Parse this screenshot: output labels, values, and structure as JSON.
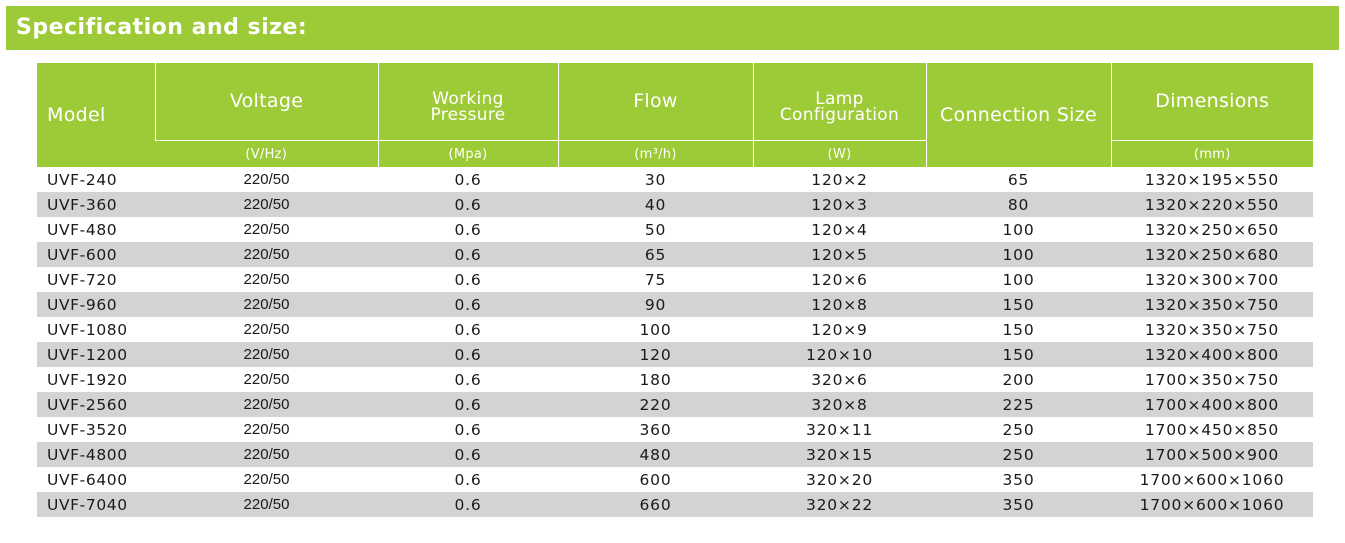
{
  "title": "Specification and size:",
  "headers": {
    "model": "Model",
    "voltage": "Voltage",
    "pressure_line1": "Working",
    "pressure_line2": "Pressure",
    "flow": "Flow",
    "lamp_line1": "Lamp",
    "lamp_line2": "Configuration",
    "connection": "Connection Size",
    "dimensions": "Dimensions"
  },
  "units": {
    "voltage": "(V/Hz)",
    "pressure": "(Mpa)",
    "flow": "(m³/h)",
    "lamp": "(W)",
    "dimensions": "(mm)"
  },
  "rows": [
    {
      "model": "UVF-240",
      "voltage": "220/50",
      "pressure": "0.6",
      "flow": "30",
      "lamp": "120×2",
      "connection": "65",
      "dimensions": "1320×195×550"
    },
    {
      "model": "UVF-360",
      "voltage": "220/50",
      "pressure": "0.6",
      "flow": "40",
      "lamp": "120×3",
      "connection": "80",
      "dimensions": "1320×220×550"
    },
    {
      "model": "UVF-480",
      "voltage": "220/50",
      "pressure": "0.6",
      "flow": "50",
      "lamp": "120×4",
      "connection": "100",
      "dimensions": "1320×250×650"
    },
    {
      "model": "UVF-600",
      "voltage": "220/50",
      "pressure": "0.6",
      "flow": "65",
      "lamp": "120×5",
      "connection": "100",
      "dimensions": "1320×250×680"
    },
    {
      "model": "UVF-720",
      "voltage": "220/50",
      "pressure": "0.6",
      "flow": "75",
      "lamp": "120×6",
      "connection": "100",
      "dimensions": "1320×300×700"
    },
    {
      "model": "UVF-960",
      "voltage": "220/50",
      "pressure": "0.6",
      "flow": "90",
      "lamp": "120×8",
      "connection": "150",
      "dimensions": "1320×350×750"
    },
    {
      "model": "UVF-1080",
      "voltage": "220/50",
      "pressure": "0.6",
      "flow": "100",
      "lamp": "120×9",
      "connection": "150",
      "dimensions": "1320×350×750"
    },
    {
      "model": "UVF-1200",
      "voltage": "220/50",
      "pressure": "0.6",
      "flow": "120",
      "lamp": "120×10",
      "connection": "150",
      "dimensions": "1320×400×800"
    },
    {
      "model": "UVF-1920",
      "voltage": "220/50",
      "pressure": "0.6",
      "flow": "180",
      "lamp": "320×6",
      "connection": "200",
      "dimensions": "1700×350×750"
    },
    {
      "model": "UVF-2560",
      "voltage": "220/50",
      "pressure": "0.6",
      "flow": "220",
      "lamp": "320×8",
      "connection": "225",
      "dimensions": "1700×400×800"
    },
    {
      "model": "UVF-3520",
      "voltage": "220/50",
      "pressure": "0.6",
      "flow": "360",
      "lamp": "320×11",
      "connection": "250",
      "dimensions": "1700×450×850"
    },
    {
      "model": "UVF-4800",
      "voltage": "220/50",
      "pressure": "0.6",
      "flow": "480",
      "lamp": "320×15",
      "connection": "250",
      "dimensions": "1700×500×900"
    },
    {
      "model": "UVF-6400",
      "voltage": "220/50",
      "pressure": "0.6",
      "flow": "600",
      "lamp": "320×20",
      "connection": "350",
      "dimensions": "1700×600×1060"
    },
    {
      "model": "UVF-7040",
      "voltage": "220/50",
      "pressure": "0.6",
      "flow": "660",
      "lamp": "320×22",
      "connection": "350",
      "dimensions": "1700×600×1060"
    }
  ],
  "colors": {
    "accent": "#9dcb38",
    "stripe": "#d2d3d5"
  }
}
